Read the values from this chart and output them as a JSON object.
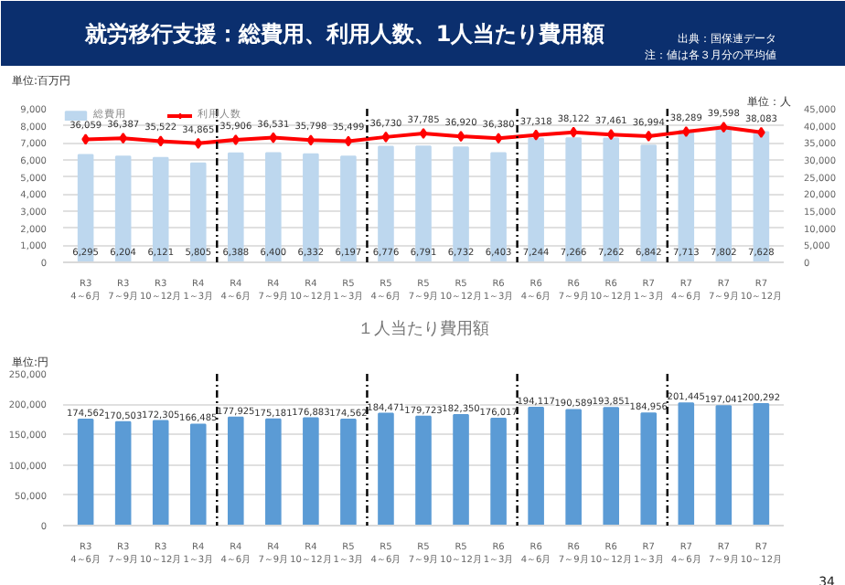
{
  "chart_data": [
    {
      "type": "bar",
      "title": "就労移行支援：総費用、利用人数、1人当たり費用額",
      "annotations": [
        "出典：国保連データ",
        "注：値は各３月分の平均値"
      ],
      "ylabel": "単位:百万円",
      "y2label": "単位：人",
      "categories": [
        "R3\n4～6月",
        "R3\n7～9月",
        "R3\n10～12月",
        "R4\n1～3月",
        "R4\n4～6月",
        "R4\n7～9月",
        "R4\n10～12月",
        "R5\n1～3月",
        "R5\n4～6月",
        "R5\n7～9月",
        "R5\n10～12月",
        "R6\n1～3月",
        "R6\n4～6月",
        "R6\n7～9月",
        "R6\n10～12月",
        "R7\n1～3月",
        "R7\n4～6月",
        "R7\n7～9月",
        "R7\n10～12月"
      ],
      "series": [
        {
          "name": "総費用",
          "type": "bar",
          "color": "#bdd7ee",
          "values": [
            6295,
            6204,
            6121,
            5805,
            6388,
            6400,
            6332,
            6197,
            6776,
            6791,
            6732,
            6403,
            7244,
            7266,
            7262,
            6842,
            7713,
            7802,
            7628
          ],
          "value_labels": [
            "6,295",
            "6,204",
            "6,121",
            "5,805",
            "6,388",
            "6,400",
            "6,332",
            "6,197",
            "6,776",
            "6,791",
            "6,732",
            "6,403",
            "7,244",
            "7,266",
            "7,262",
            "6,842",
            "7,713",
            "7,802",
            "7,628"
          ]
        },
        {
          "name": "利用人数",
          "type": "line",
          "axis": "y2",
          "color": "#ff0000",
          "values": [
            36059,
            36387,
            35522,
            34865,
            35906,
            36531,
            35798,
            35499,
            36730,
            37785,
            36920,
            36380,
            37318,
            38122,
            37461,
            36994,
            38289,
            39598,
            38083
          ],
          "value_labels": [
            "36,059",
            "36,387",
            "35,522",
            "34,865",
            "35,906",
            "36,531",
            "35,798",
            "35,499",
            "36,730",
            "37,785",
            "36,920",
            "36,380",
            "37,318",
            "38,122",
            "37,461",
            "36,994",
            "38,289",
            "39,598",
            "38,083"
          ]
        }
      ],
      "ylim": [
        0,
        9000
      ],
      "yticks": [
        {
          "value": 0,
          "label": "0"
        },
        {
          "value": 1000,
          "label": "1,000"
        },
        {
          "value": 2000,
          "label": "2,000"
        },
        {
          "value": 3000,
          "label": "3,000"
        },
        {
          "value": 4000,
          "label": "4,000"
        },
        {
          "value": 5000,
          "label": "5,000"
        },
        {
          "value": 6000,
          "label": "6,000"
        },
        {
          "value": 7000,
          "label": "7,000"
        },
        {
          "value": 8000,
          "label": "8,000"
        },
        {
          "value": 9000,
          "label": "9,000"
        }
      ],
      "y2lim": [
        0,
        45000
      ],
      "y2ticks": [
        {
          "value": 0,
          "label": "0"
        },
        {
          "value": 5000,
          "label": "5,000"
        },
        {
          "value": 10000,
          "label": "10,000"
        },
        {
          "value": 15000,
          "label": "15,000"
        },
        {
          "value": 20000,
          "label": "20,000"
        },
        {
          "value": 25000,
          "label": "25,000"
        },
        {
          "value": 30000,
          "label": "30,000"
        },
        {
          "value": 35000,
          "label": "35,000"
        },
        {
          "value": 40000,
          "label": "40,000"
        },
        {
          "value": 45000,
          "label": "45,000"
        }
      ],
      "marker": "diamond",
      "grid": "y",
      "legend": "top left"
    },
    {
      "type": "bar",
      "title": "１人当たり費用額",
      "ylabel": "単位:円",
      "annotations": [
        "34"
      ],
      "categories": [
        "R3\n4～6月",
        "R3\n7～9月",
        "R3\n10～12月",
        "R4\n1～3月",
        "R4\n4～6月",
        "R4\n7～9月",
        "R4\n10～12月",
        "R5\n1～3月",
        "R5\n4～6月",
        "R5\n7～9月",
        "R5\n10～12月",
        "R6\n1～3月",
        "R6\n4～6月",
        "R6\n7～9月",
        "R6\n10～12月",
        "R7\n1～3月",
        "R7\n4～6月",
        "R7\n7～9月",
        "R7\n10～12月"
      ],
      "values": [
        174562,
        170503,
        172305,
        166485,
        177925,
        175181,
        176883,
        174562,
        184471,
        179723,
        182350,
        176017,
        194117,
        190589,
        193851,
        184956,
        201445,
        197041,
        200292
      ],
      "color": "#5b9bd5",
      "ylim": [
        0,
        250000
      ],
      "yticks": [
        {
          "value": 0,
          "label": "0"
        },
        {
          "value": 50000,
          "label": "50,000"
        },
        {
          "value": 100000,
          "label": "100,000"
        },
        {
          "value": 150000,
          "label": "150,000"
        },
        {
          "value": 200000,
          "label": "200,000"
        },
        {
          "value": 250000,
          "label": "250,000"
        }
      ],
      "value_labels": [
        "174,562",
        "170,503",
        "172,305",
        "166,485",
        "177,925",
        "175,181",
        "176,883",
        "174,562",
        "184,471",
        "179,723",
        "182,350",
        "176,017",
        "194,117",
        "190,589",
        "193,851",
        "184,956",
        "201,445",
        "197,041",
        "200,292"
      ],
      "grid": "y"
    }
  ]
}
